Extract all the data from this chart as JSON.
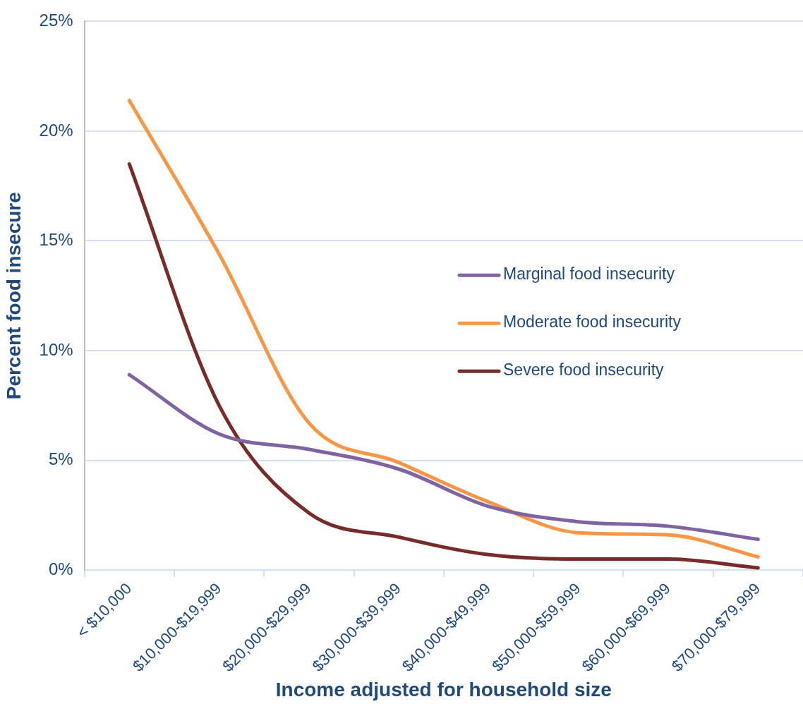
{
  "chart_data": {
    "type": "line",
    "xlabel": "Income adjusted for household size",
    "ylabel": "Percent food insecure",
    "categories": [
      "< $10,000",
      "$10,000-$19,999",
      "$20,000-$29,999",
      "$30,000-$39,999",
      "$40,000-$49,999",
      "$50,000-$59,999",
      "$60,000-$69,999",
      "$70,000-$79,999"
    ],
    "series": [
      {
        "name": "Marginal food insecurity",
        "color": "#8064a2",
        "values": [
          8.9,
          6.2,
          5.5,
          4.6,
          2.9,
          2.2,
          2.0,
          1.4
        ]
      },
      {
        "name": "Moderate food insecurity",
        "color": "#f79646",
        "values": [
          21.4,
          14.4,
          6.7,
          4.9,
          3.1,
          1.7,
          1.6,
          0.6
        ]
      },
      {
        "name": "Severe food insecurity",
        "color": "#772c2a",
        "values": [
          18.5,
          7.5,
          2.6,
          1.5,
          0.7,
          0.5,
          0.5,
          0.1
        ]
      }
    ],
    "ylim": [
      0,
      25
    ],
    "yticks": [
      {
        "value": 0,
        "label": "0%"
      },
      {
        "value": 5,
        "label": "5%"
      },
      {
        "value": 10,
        "label": "10%"
      },
      {
        "value": 15,
        "label": "15%"
      },
      {
        "value": 20,
        "label": "20%"
      },
      {
        "value": 25,
        "label": "25%"
      }
    ],
    "grid": "y",
    "legend": "right",
    "marker": "none"
  }
}
